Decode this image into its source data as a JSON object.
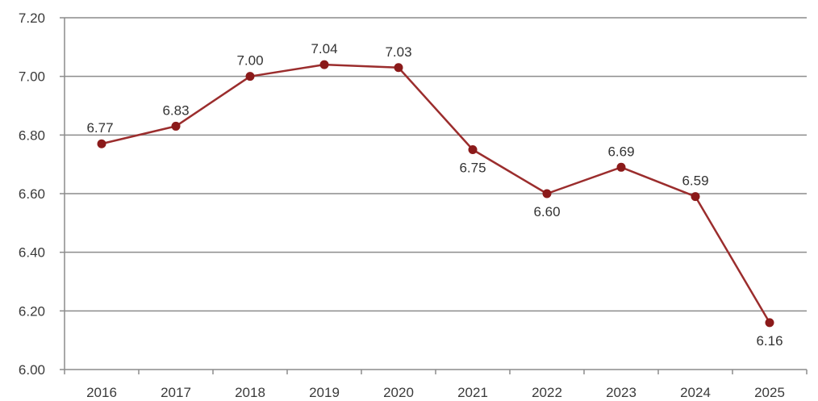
{
  "chart_data": {
    "type": "line",
    "title": "",
    "xlabel": "",
    "ylabel": "",
    "categories": [
      "2016",
      "2017",
      "2018",
      "2019",
      "2020",
      "2021",
      "2022",
      "2023",
      "2024",
      "2025"
    ],
    "series": [
      {
        "values": [
          6.77,
          6.83,
          7.0,
          7.04,
          7.03,
          6.75,
          6.6,
          6.69,
          6.59,
          6.16
        ],
        "data_labels": [
          "6.77",
          "6.83",
          "7.00",
          "7.04",
          "7.03",
          "6.75",
          "6.60",
          "6.69",
          "6.59",
          "6.16"
        ],
        "color": "#9b2d2d",
        "marker_color": "#8b1a1a"
      }
    ],
    "ylim": [
      6.0,
      7.2
    ],
    "y_ticks": [
      6.0,
      6.2,
      6.4,
      6.6,
      6.8,
      7.0,
      7.2
    ],
    "y_tick_labels": [
      "6.00",
      "6.20",
      "6.40",
      "6.60",
      "6.80",
      "7.00",
      "7.20"
    ],
    "grid": true,
    "gridline_color": "#8c8c8c",
    "legend": "none"
  }
}
